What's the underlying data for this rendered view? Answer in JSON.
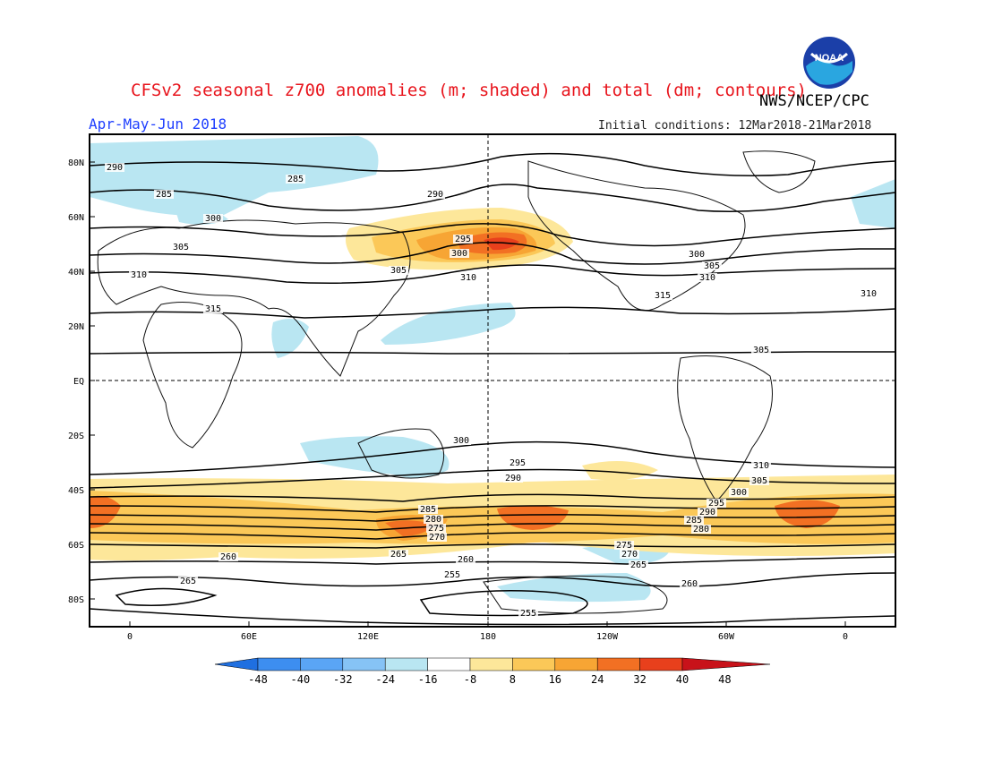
{
  "header": {
    "title": "CFSv2 seasonal z700 anomalies (m; shaded) and total (dm; contours)",
    "agency": "NWS/NCEP/CPC",
    "season": "Apr-May-Jun 2018",
    "initial_conditions": "Initial conditions: 12Mar2018-21Mar2018",
    "logo_text": "NOAA"
  },
  "map": {
    "lat_ticks": [
      "80N",
      "60N",
      "40N",
      "20N",
      "EQ",
      "20S",
      "40S",
      "60S",
      "80S"
    ],
    "lon_ticks": [
      "0",
      "60E",
      "120E",
      "180",
      "120W",
      "60W",
      "0"
    ],
    "contour_labels": [
      "290",
      "285",
      "300",
      "305",
      "310",
      "315",
      "290",
      "285",
      "295",
      "300",
      "305",
      "310",
      "315",
      "300",
      "305",
      "310",
      "310",
      "305",
      "300",
      "295",
      "290",
      "285",
      "280",
      "275",
      "270",
      "265",
      "260",
      "255",
      "310",
      "305",
      "300",
      "295",
      "290",
      "285",
      "280",
      "275",
      "270",
      "265",
      "260",
      "265",
      "255",
      "260"
    ]
  },
  "colorbar": {
    "labels": [
      "-48",
      "-40",
      "-32",
      "-24",
      "-16",
      "-8",
      "8",
      "16",
      "24",
      "32",
      "40",
      "48"
    ],
    "colors": [
      "#1f6fe0",
      "#3d8ef0",
      "#5aa5f5",
      "#86c3f5",
      "#b9e6f2",
      "#ffffff",
      "#fde79a",
      "#fbc858",
      "#f7a534",
      "#f27023",
      "#e8401c",
      "#c8121a"
    ]
  },
  "colors": {
    "title": "#e8141c",
    "season": "#2040ff",
    "negative_anomaly": "#b9e6f2",
    "positive_anomaly": "#fde79a",
    "strong_positive": "#f27023"
  }
}
